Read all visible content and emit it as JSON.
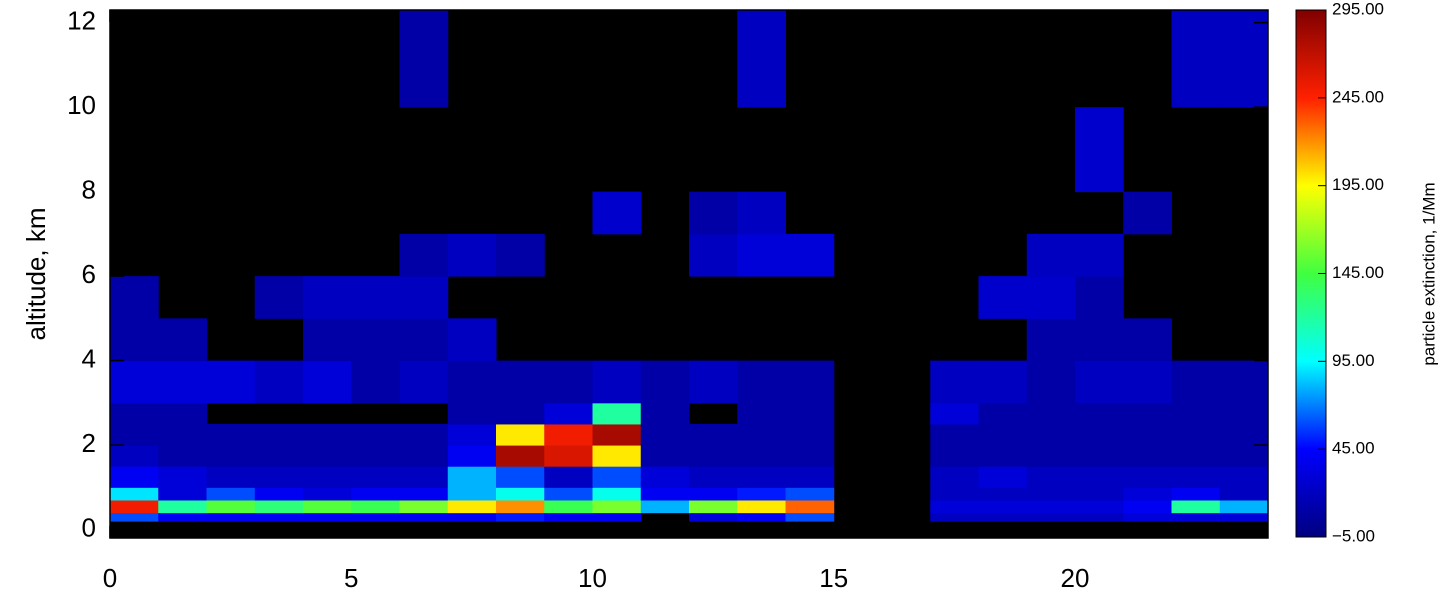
{
  "chart_data": {
    "type": "heatmap",
    "ylabel": "altitude, km",
    "xlim": [
      0,
      24
    ],
    "xticks": [
      0,
      5,
      10,
      15,
      20
    ],
    "ylim": [
      -0.2,
      12.3
    ],
    "yticks": [
      0,
      2,
      4,
      6,
      8,
      10,
      12
    ],
    "x_bins": [
      0,
      1,
      2,
      3,
      4,
      5,
      6,
      7,
      8,
      9,
      10,
      11,
      12,
      13,
      14,
      15,
      16,
      17,
      18,
      19,
      20,
      21,
      22,
      23,
      24
    ],
    "y_bins": [
      0.2,
      0.4,
      0.7,
      1.0,
      1.5,
      2.0,
      2.5,
      3.0,
      4.0,
      5.0,
      6.0,
      7.0,
      8.0,
      10.0,
      12.3
    ],
    "values": [
      [
        60,
        40,
        40,
        40,
        40,
        40,
        40,
        40,
        50,
        40,
        40,
        null,
        30,
        40,
        60,
        null,
        null,
        20,
        20,
        20,
        20,
        30,
        30,
        30
      ],
      [
        250,
        120,
        150,
        130,
        150,
        140,
        160,
        200,
        220,
        140,
        160,
        80,
        160,
        200,
        230,
        null,
        null,
        30,
        30,
        30,
        30,
        40,
        120,
        80
      ],
      [
        90,
        30,
        60,
        40,
        30,
        40,
        40,
        80,
        100,
        60,
        100,
        40,
        40,
        50,
        60,
        null,
        null,
        20,
        20,
        20,
        20,
        30,
        40,
        20
      ],
      [
        40,
        30,
        20,
        20,
        20,
        20,
        20,
        80,
        60,
        20,
        60,
        30,
        20,
        20,
        20,
        null,
        null,
        20,
        30,
        20,
        20,
        20,
        20,
        20
      ],
      [
        20,
        10,
        10,
        10,
        10,
        10,
        10,
        40,
        280,
        260,
        200,
        10,
        10,
        10,
        10,
        null,
        null,
        10,
        10,
        10,
        10,
        10,
        10,
        10
      ],
      [
        10,
        10,
        10,
        10,
        10,
        10,
        10,
        30,
        200,
        250,
        280,
        10,
        10,
        10,
        10,
        null,
        null,
        10,
        10,
        10,
        10,
        10,
        10,
        10
      ],
      [
        10,
        10,
        null,
        null,
        null,
        null,
        null,
        10,
        10,
        30,
        120,
        10,
        null,
        10,
        10,
        null,
        null,
        30,
        10,
        10,
        10,
        10,
        10,
        10
      ],
      [
        30,
        30,
        30,
        20,
        30,
        10,
        20,
        10,
        10,
        10,
        20,
        10,
        20,
        10,
        10,
        null,
        null,
        20,
        20,
        10,
        20,
        20,
        10,
        10
      ],
      [
        10,
        10,
        null,
        null,
        10,
        10,
        10,
        20,
        null,
        null,
        null,
        null,
        null,
        null,
        null,
        null,
        null,
        null,
        null,
        10,
        10,
        10,
        null,
        null
      ],
      [
        10,
        null,
        null,
        10,
        20,
        20,
        20,
        null,
        null,
        null,
        null,
        null,
        null,
        null,
        null,
        null,
        null,
        null,
        25,
        25,
        10,
        null,
        null,
        null
      ],
      [
        null,
        null,
        null,
        null,
        null,
        null,
        10,
        20,
        10,
        null,
        null,
        null,
        20,
        30,
        30,
        null,
        null,
        null,
        null,
        20,
        20,
        null,
        null,
        null
      ],
      [
        null,
        null,
        null,
        null,
        null,
        null,
        null,
        null,
        null,
        null,
        25,
        null,
        10,
        20,
        null,
        null,
        null,
        null,
        null,
        null,
        null,
        10,
        null,
        null
      ],
      [
        null,
        null,
        null,
        null,
        null,
        null,
        null,
        null,
        null,
        null,
        null,
        null,
        null,
        null,
        null,
        null,
        null,
        null,
        null,
        null,
        25,
        null,
        null,
        null
      ],
      [
        null,
        null,
        null,
        null,
        null,
        null,
        10,
        null,
        null,
        null,
        null,
        null,
        null,
        20,
        null,
        null,
        null,
        null,
        null,
        null,
        null,
        null,
        20,
        20
      ]
    ],
    "missing_color": "#000000",
    "colormap": [
      "#000080",
      "#0000ff",
      "#00ffff",
      "#40ff40",
      "#ffff00",
      "#ff2000",
      "#800000"
    ],
    "colorbar": {
      "label": "particle extinction, 1/Mm",
      "lim": [
        -5,
        295
      ],
      "ticks": [
        {
          "value": -5,
          "label": "−5.00"
        },
        {
          "value": 45,
          "label": "45.00"
        },
        {
          "value": 95,
          "label": "95.00"
        },
        {
          "value": 145,
          "label": "145.00"
        },
        {
          "value": 195,
          "label": "195.00"
        },
        {
          "value": 245,
          "label": "245.00"
        },
        {
          "value": 295,
          "label": "295.00"
        }
      ]
    }
  }
}
